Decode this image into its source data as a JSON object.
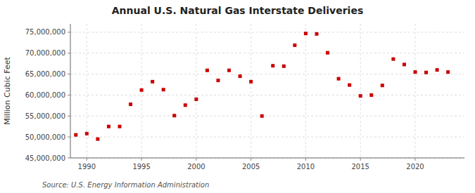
{
  "chart_data": {
    "type": "scatter",
    "title": "Annual U.S. Natural Gas Interstate Deliveries",
    "ylabel": "Million Cubic Feet",
    "annotations": [
      "Source: U.S. Energy Information Administration"
    ],
    "x": [
      1989,
      1990,
      1991,
      1992,
      1993,
      1994,
      1995,
      1996,
      1997,
      1998,
      1999,
      2000,
      2001,
      2002,
      2003,
      2004,
      2005,
      2006,
      2007,
      2008,
      2009,
      2010,
      2011,
      2012,
      2013,
      2014,
      2015,
      2016,
      2017,
      2018,
      2019,
      2020,
      2021,
      2022,
      2023
    ],
    "values": [
      50500000,
      50800000,
      49500000,
      52500000,
      52500000,
      57800000,
      61200000,
      63200000,
      61300000,
      55100000,
      57600000,
      59000000,
      65900000,
      63500000,
      65900000,
      64500000,
      63200000,
      55000000,
      67000000,
      66900000,
      71900000,
      74700000,
      74600000,
      70100000,
      63900000,
      62400000,
      59800000,
      60000000,
      62300000,
      68600000,
      67300000,
      65500000,
      65400000,
      66000000,
      65500000
    ],
    "color": "#cc0000",
    "marker": "square",
    "xlim": [
      1988.5,
      2024.5
    ],
    "xticks": [
      1990,
      1995,
      2000,
      2005,
      2010,
      2015,
      2020
    ],
    "ylim": [
      45000000,
      77000000
    ],
    "yticks": [
      {
        "value": 45000000,
        "label": "45,000,000"
      },
      {
        "value": 50000000,
        "label": "50,000,000"
      },
      {
        "value": 55000000,
        "label": "55,000,000"
      },
      {
        "value": 60000000,
        "label": "60,000,000"
      },
      {
        "value": 65000000,
        "label": "65,000,000"
      },
      {
        "value": 70000000,
        "label": "70,000,000"
      },
      {
        "value": 75000000,
        "label": "75,000,000"
      }
    ],
    "grid": true
  }
}
